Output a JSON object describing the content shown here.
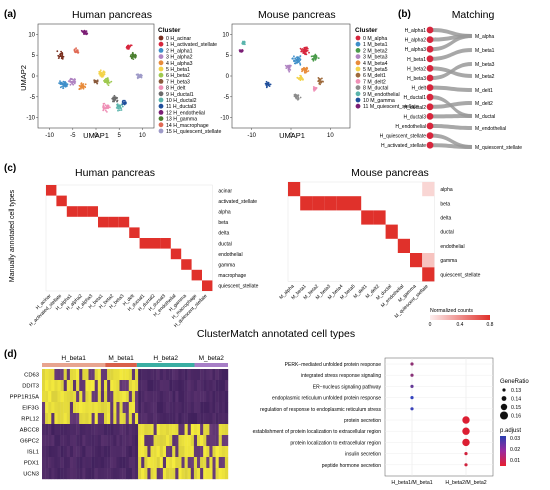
{
  "panels": {
    "a": {
      "label": "(a)",
      "human_title": "Human pancreas",
      "mouse_title": "Mouse pancreas",
      "xaxis_label": "UMAP1",
      "yaxis_label": "UMAP2",
      "human_xticks": [
        "-10",
        "-5",
        "0",
        "5",
        "10"
      ],
      "human_yticks": [
        "10",
        "5",
        "0",
        "-5",
        "-10"
      ],
      "mouse_xticks": [
        "-10",
        "0",
        "10"
      ],
      "mouse_yticks": [
        "10",
        "5",
        "0",
        "-5",
        "-10"
      ],
      "human_legend_title": "Cluster",
      "human_legend": [
        {
          "id": "0",
          "name": "H_acinar",
          "color": "#7a2f1f"
        },
        {
          "id": "1",
          "name": "H_activated_stellate",
          "color": "#d7263d"
        },
        {
          "id": "2",
          "name": "H_alpha1",
          "color": "#3f8fc9"
        },
        {
          "id": "3",
          "name": "H_alpha2",
          "color": "#b084c2"
        },
        {
          "id": "4",
          "name": "H_alpha3",
          "color": "#e88b3a"
        },
        {
          "id": "5",
          "name": "H_beta1",
          "color": "#f3d34a"
        },
        {
          "id": "6",
          "name": "H_beta2",
          "color": "#9ec94f"
        },
        {
          "id": "7",
          "name": "H_beta3",
          "color": "#8a5a3c"
        },
        {
          "id": "8",
          "name": "H_delt",
          "color": "#ef8fb6"
        },
        {
          "id": "9",
          "name": "H_ductal1",
          "color": "#6b6b6b"
        },
        {
          "id": "10",
          "name": "H_ductal2",
          "color": "#5ab4ac"
        },
        {
          "id": "11",
          "name": "H_ductal3",
          "color": "#1f4e9b"
        },
        {
          "id": "12",
          "name": "H_endothelial",
          "color": "#7b1e75"
        },
        {
          "id": "13",
          "name": "H_gamma",
          "color": "#4a7f2e"
        },
        {
          "id": "14",
          "name": "H_macrophage",
          "color": "#e06a55"
        },
        {
          "id": "15",
          "name": "H_quiescent_stellate",
          "color": "#9e9ac8"
        }
      ],
      "mouse_legend_title": "Cluster",
      "mouse_legend": [
        {
          "id": "0",
          "name": "M_alpha",
          "color": "#d7263d"
        },
        {
          "id": "1",
          "name": "M_beta1",
          "color": "#3f8fc9"
        },
        {
          "id": "2",
          "name": "M_beta2",
          "color": "#4a9b4a"
        },
        {
          "id": "3",
          "name": "M_beta3",
          "color": "#b084c2"
        },
        {
          "id": "4",
          "name": "M_beta4",
          "color": "#e88b3a"
        },
        {
          "id": "5",
          "name": "M_beta5",
          "color": "#f3d34a"
        },
        {
          "id": "6",
          "name": "M_delt1",
          "color": "#9e6a3c"
        },
        {
          "id": "7",
          "name": "M_delt2",
          "color": "#ef8fb6"
        },
        {
          "id": "8",
          "name": "M_ductal",
          "color": "#8c8c8c"
        },
        {
          "id": "9",
          "name": "M_endothelial",
          "color": "#5ab4ac"
        },
        {
          "id": "10",
          "name": "M_gamma",
          "color": "#1f4e9b"
        },
        {
          "id": "11",
          "name": "M_quiescent_stellate",
          "color": "#7b1e75"
        }
      ]
    },
    "b": {
      "label": "(b)",
      "title": "Matching",
      "left_labels": [
        "H_alpha1",
        "H_alpha2",
        "H_alpha3",
        "H_beta1",
        "H_beta2",
        "H_beta3",
        "H_delt",
        "H_ductal1",
        "H_ductal2",
        "H_ductal3",
        "H_endothelial",
        "H_quiescent_stellate",
        "H_activated_stellate"
      ],
      "right_labels": [
        "M_alpha",
        "M_beta1",
        "M_beta3",
        "M_beta2",
        "M_delt1",
        "M_delt2",
        "M_ductal",
        "M_endothelial",
        "M_quiescent_stellate"
      ]
    },
    "c": {
      "label": "(c)",
      "human_title": "Human pancreas",
      "mouse_title": "Mouse pancreas",
      "ylabel": "Manually annotated cell types",
      "human_rows": [
        "acinar",
        "activated_stellate",
        "alpha",
        "beta",
        "delta",
        "ductal",
        "endothelial",
        "gamma",
        "macrophage",
        "quiescent_stellate"
      ],
      "human_cols": [
        "H_acinar",
        "H_activated_stellate",
        "H_alpha1",
        "H_alpha2",
        "H_alpha3",
        "H_beta1",
        "H_beta2",
        "H_beta3",
        "H_delt",
        "H_ductal1",
        "H_ductal2",
        "H_ductal3",
        "H_endothelial",
        "H_gamma",
        "H_macrophage",
        "H_quiescent_stellate"
      ],
      "human_map": [
        0,
        1,
        2,
        2,
        2,
        3,
        3,
        3,
        4,
        5,
        5,
        5,
        6,
        7,
        8,
        9
      ],
      "mouse_rows": [
        "alpha",
        "beta",
        "delta",
        "ductal",
        "endothelial",
        "gamma",
        "quiescent_stellate"
      ],
      "mouse_cols": [
        "M_alpha",
        "M_beta1",
        "M_beta2",
        "M_beta3",
        "M_beta4",
        "M_beta5",
        "M_delt1",
        "M_delt2",
        "M_ductal",
        "M_endothelial",
        "M_gamma",
        "M_quiescent_stellate"
      ],
      "mouse_map": [
        0,
        1,
        1,
        1,
        1,
        1,
        2,
        2,
        3,
        4,
        5,
        6
      ],
      "colorbar_title": "Normalized counts",
      "colorbar_ticks": [
        "0",
        "0.4",
        "0.8"
      ],
      "cell_color": "#e0312b"
    },
    "clustermatch_title": "ClusterMatch annotated cell types",
    "d": {
      "label": "(d)",
      "group_labels": [
        "H_beta1",
        "M_beta1",
        "H_beta2",
        "M_beta2"
      ],
      "group_colors": [
        "#e8a48f",
        "#d9604a",
        "#3aaea3",
        "#a77fc7"
      ],
      "genes": [
        "CD63",
        "DDIT3",
        "PPP1R15A",
        "EIF3G",
        "RPL12",
        "ABCC8",
        "G6PC2",
        "ISL1",
        "PDX1",
        "UCN3"
      ],
      "go_terms": [
        {
          "term": "PERK−mediated unfolded protein response",
          "group": 0,
          "p": 0.021,
          "ratio": 0.13
        },
        {
          "term": "integrated stress response signaling",
          "group": 0,
          "p": 0.022,
          "ratio": 0.13
        },
        {
          "term": "ER−nucleus signaling pathway",
          "group": 0,
          "p": 0.028,
          "ratio": 0.13
        },
        {
          "term": "endoplasmic reticulum unfolded protein response",
          "group": 0,
          "p": 0.036,
          "ratio": 0.13
        },
        {
          "term": "regulation of response to endoplasmic reticulum stress",
          "group": 0,
          "p": 0.035,
          "ratio": 0.13
        },
        {
          "term": "protein secretion",
          "group": 1,
          "p": 0.008,
          "ratio": 0.16
        },
        {
          "term": "establishment of protein localization to extracellular region",
          "group": 1,
          "p": 0.008,
          "ratio": 0.16
        },
        {
          "term": "protein localization to extracellular region",
          "group": 1,
          "p": 0.008,
          "ratio": 0.16
        },
        {
          "term": "insulin secretion",
          "group": 1,
          "p": 0.01,
          "ratio": 0.13
        },
        {
          "term": "peptide hormone secretion",
          "group": 1,
          "p": 0.01,
          "ratio": 0.13
        }
      ],
      "go_x_labels": [
        "H_beta1/M_beta1",
        "H_beta2/M_beta2"
      ],
      "generatio_title": "GeneRatio",
      "generatio_ticks": [
        "0.13",
        "0.14",
        "0.15",
        "0.16"
      ],
      "padjust_title": "p.adjust",
      "padjust_ticks": [
        "0.03",
        "0.02",
        "0.01"
      ]
    }
  }
}
